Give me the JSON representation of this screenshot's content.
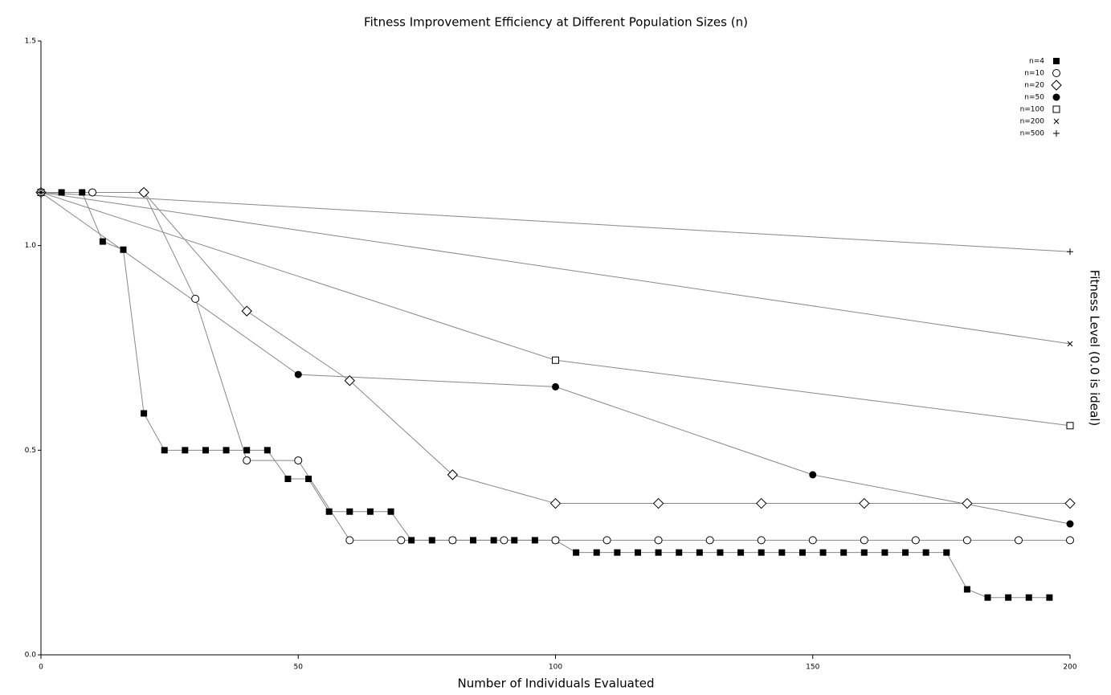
{
  "chart_data": {
    "type": "line",
    "title": "Fitness Improvement Efficiency at Different Population Sizes (n)",
    "x_label": "Number of Individuals Evaluated",
    "y_label": "Fitness Level (0.0 is ideal)",
    "xlim": [
      0,
      200
    ],
    "xticks": [
      0,
      50,
      100,
      150,
      200
    ],
    "ylim": [
      0,
      1.5
    ],
    "yticks": [
      {
        "value": 0,
        "label": "0.0"
      },
      {
        "value": 0.5,
        "label": "0.5"
      },
      {
        "value": 1,
        "label": "1.0"
      },
      {
        "value": 1.5,
        "label": "1.5"
      }
    ],
    "line_color": "#888888",
    "legend": "top-right",
    "series": [
      {
        "name": "n=4",
        "marker": "square-filled",
        "color": "#000000",
        "x": [
          0,
          4,
          8,
          12,
          16,
          20,
          24,
          28,
          32,
          36,
          40,
          44,
          48,
          52,
          56,
          60,
          64,
          68,
          72,
          76,
          80,
          84,
          88,
          92,
          96,
          100,
          104,
          108,
          112,
          116,
          120,
          124,
          128,
          132,
          136,
          140,
          144,
          148,
          152,
          156,
          160,
          164,
          168,
          172,
          176,
          180,
          184,
          188,
          192,
          196
        ],
        "values": [
          1.13,
          1.13,
          1.13,
          1.01,
          0.99,
          0.59,
          0.5,
          0.5,
          0.5,
          0.5,
          0.5,
          0.5,
          0.43,
          0.43,
          0.35,
          0.35,
          0.35,
          0.35,
          0.28,
          0.28,
          0.28,
          0.28,
          0.28,
          0.28,
          0.28,
          0.28,
          0.25,
          0.25,
          0.25,
          0.25,
          0.25,
          0.25,
          0.25,
          0.25,
          0.25,
          0.25,
          0.25,
          0.25,
          0.25,
          0.25,
          0.25,
          0.25,
          0.25,
          0.25,
          0.25,
          0.16,
          0.14,
          0.14,
          0.14,
          0.14
        ]
      },
      {
        "name": "n=10",
        "marker": "circle-open",
        "color": "#000000",
        "x": [
          0,
          10,
          20,
          30,
          40,
          50,
          60,
          70,
          80,
          90,
          100,
          110,
          120,
          130,
          140,
          150,
          160,
          170,
          180,
          190,
          200
        ],
        "values": [
          1.13,
          1.13,
          1.13,
          0.87,
          0.475,
          0.475,
          0.28,
          0.28,
          0.28,
          0.28,
          0.28,
          0.28,
          0.28,
          0.28,
          0.28,
          0.28,
          0.28,
          0.28,
          0.28,
          0.28,
          0.28
        ]
      },
      {
        "name": "n=20",
        "marker": "diamond-open",
        "color": "#000000",
        "x": [
          0,
          20,
          40,
          60,
          80,
          100,
          120,
          140,
          160,
          180,
          200
        ],
        "values": [
          1.13,
          1.13,
          0.84,
          0.67,
          0.44,
          0.37,
          0.37,
          0.37,
          0.37,
          0.37,
          0.37
        ]
      },
      {
        "name": "n=50",
        "marker": "circle-filled",
        "color": "#000000",
        "x": [
          0,
          50,
          100,
          150,
          200
        ],
        "values": [
          1.13,
          0.685,
          0.655,
          0.44,
          0.32
        ]
      },
      {
        "name": "n=100",
        "marker": "square-open",
        "color": "#000000",
        "x": [
          0,
          100,
          200
        ],
        "values": [
          1.13,
          0.72,
          0.56
        ]
      },
      {
        "name": "n=200",
        "marker": "cross",
        "color": "#000000",
        "x": [
          0,
          200
        ],
        "values": [
          1.13,
          0.76
        ]
      },
      {
        "name": "n=500",
        "marker": "plus",
        "color": "#000000",
        "x": [
          0,
          200
        ],
        "values": [
          1.13,
          0.985
        ]
      }
    ]
  }
}
